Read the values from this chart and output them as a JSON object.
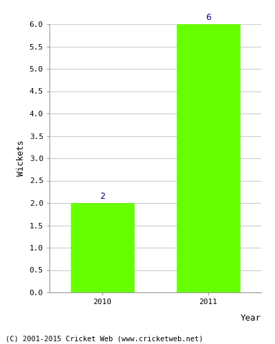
{
  "years": [
    "2010",
    "2011"
  ],
  "values": [
    2,
    6
  ],
  "bar_color": "#66ff00",
  "bar_edge_color": "#66ff00",
  "ylabel": "Wickets",
  "xlabel": "Year",
  "ylim": [
    0,
    6.0
  ],
  "yticks": [
    0.0,
    0.5,
    1.0,
    1.5,
    2.0,
    2.5,
    3.0,
    3.5,
    4.0,
    4.5,
    5.0,
    5.5,
    6.0
  ],
  "annotation_color": "#000080",
  "annotation_fontsize": 9,
  "axis_label_fontsize": 9,
  "tick_fontsize": 8,
  "footer_text": "(C) 2001-2015 Cricket Web (www.cricketweb.net)",
  "footer_fontsize": 7.5,
  "background_color": "#ffffff",
  "grid_color": "#cccccc",
  "bar_width": 0.6
}
